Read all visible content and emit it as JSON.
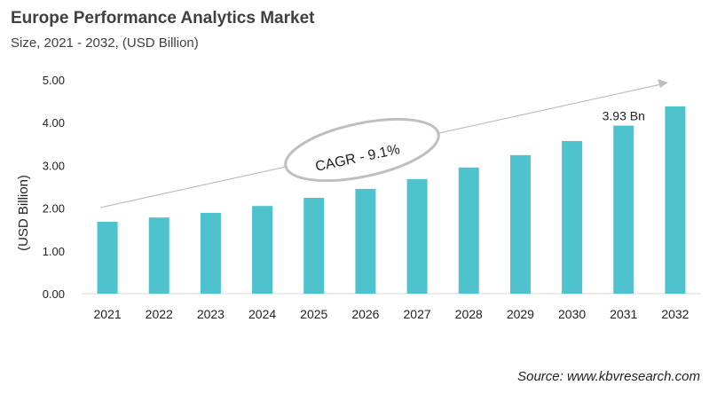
{
  "chart_data": {
    "type": "bar",
    "title": "Europe Performance Analytics Market",
    "subtitle": "Size, 2021 - 2032, (USD Billion)",
    "ylabel": "(USD Billion)",
    "xlabel": "",
    "categories": [
      "2021",
      "2022",
      "2023",
      "2024",
      "2025",
      "2026",
      "2027",
      "2028",
      "2029",
      "2030",
      "2031",
      "2032"
    ],
    "values": [
      1.68,
      1.78,
      1.89,
      2.05,
      2.24,
      2.45,
      2.68,
      2.95,
      3.24,
      3.57,
      3.93,
      4.38
    ],
    "ylim": [
      0,
      5
    ],
    "yticks": [
      "0.00",
      "1.00",
      "2.00",
      "3.00",
      "4.00",
      "5.00"
    ],
    "grid": false,
    "bar_color": "#4fc3cd",
    "data_label": {
      "category": "2031",
      "text": "3.93 Bn"
    },
    "annotation": "CAGR - 9.1%",
    "source": "Source: www.kbvresearch.com"
  }
}
